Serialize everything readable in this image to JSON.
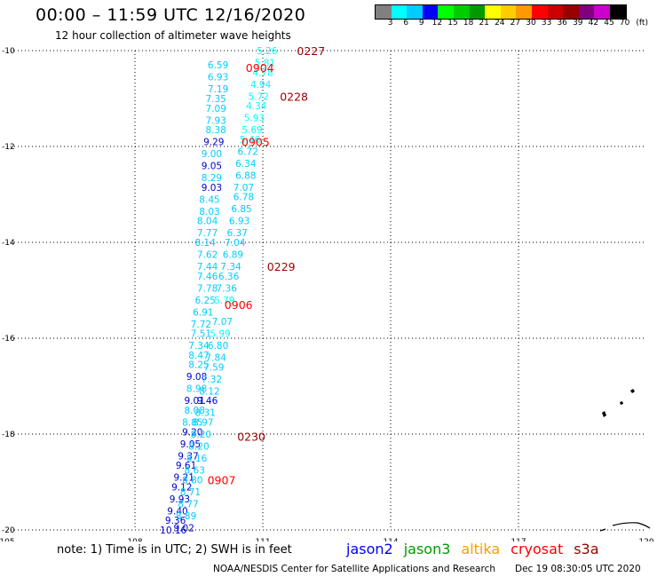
{
  "title": "00:00 – 11:59 UTC 12/16/2020",
  "subtitle": "12 hour collection of altimeter wave heights",
  "colorbar": {
    "colors": [
      "#808080",
      "#00ffff",
      "#00ccff",
      "#0000ff",
      "#00ff00",
      "#00cc00",
      "#009900",
      "#ffff00",
      "#ffcc00",
      "#ff9900",
      "#ff0000",
      "#cc0000",
      "#990000",
      "#800080",
      "#cc00cc",
      "#000000"
    ],
    "labels": [
      "3",
      "6",
      "9",
      "12",
      "15",
      "18",
      "21",
      "24",
      "27",
      "30",
      "33",
      "36",
      "39",
      "42",
      "45",
      "70",
      "(ft)"
    ]
  },
  "map": {
    "lon_ticks": [
      "105",
      "108",
      "111",
      "114",
      "117",
      "120"
    ],
    "lat_ticks": [
      "-10",
      "-12",
      "-14",
      "-16",
      "-18",
      "-20"
    ],
    "time_labels": [
      {
        "text": "0227",
        "lon": 111.8,
        "lat": -10.0,
        "color": "#990000"
      },
      {
        "text": "0904",
        "lon": 110.6,
        "lat": -10.35,
        "color": "#ff0000"
      },
      {
        "text": "0228",
        "lon": 111.4,
        "lat": -10.95,
        "color": "#990000"
      },
      {
        "text": "0905",
        "lon": 110.5,
        "lat": -11.9,
        "color": "#ff0000"
      },
      {
        "text": "0229",
        "lon": 111.1,
        "lat": -14.5,
        "color": "#990000"
      },
      {
        "text": "0906",
        "lon": 110.1,
        "lat": -15.3,
        "color": "#ff0000"
      },
      {
        "text": "0230",
        "lon": 110.4,
        "lat": -18.05,
        "color": "#990000"
      },
      {
        "text": "0907",
        "lon": 109.7,
        "lat": -18.95,
        "color": "#ff0000"
      }
    ],
    "wave_points": [
      {
        "v": "6.59",
        "lon": 109.95,
        "lat": -10.3,
        "color": "#00ccff"
      },
      {
        "v": "6.93",
        "lon": 109.95,
        "lat": -10.55,
        "color": "#00ccff"
      },
      {
        "v": "7.19",
        "lon": 109.95,
        "lat": -10.8,
        "color": "#00ccff"
      },
      {
        "v": "7.35",
        "lon": 109.9,
        "lat": -11.0,
        "color": "#00ccff"
      },
      {
        "v": "7.09",
        "lon": 109.9,
        "lat": -11.2,
        "color": "#00ccff"
      },
      {
        "v": "7.93",
        "lon": 109.9,
        "lat": -11.45,
        "color": "#00ccff"
      },
      {
        "v": "8.38",
        "lon": 109.9,
        "lat": -11.65,
        "color": "#00ccff"
      },
      {
        "v": "9.29",
        "lon": 109.85,
        "lat": -11.9,
        "color": "#0000cc"
      },
      {
        "v": "9.00",
        "lon": 109.8,
        "lat": -12.15,
        "color": "#00ccff"
      },
      {
        "v": "9.05",
        "lon": 109.8,
        "lat": -12.4,
        "color": "#0000cc"
      },
      {
        "v": "8.29",
        "lon": 109.8,
        "lat": -12.65,
        "color": "#00ccff"
      },
      {
        "v": "9.03",
        "lon": 109.8,
        "lat": -12.85,
        "color": "#0000cc"
      },
      {
        "v": "8.45",
        "lon": 109.75,
        "lat": -13.1,
        "color": "#00ccff"
      },
      {
        "v": "8.03",
        "lon": 109.75,
        "lat": -13.35,
        "color": "#00ccff"
      },
      {
        "v": "8.04",
        "lon": 109.7,
        "lat": -13.55,
        "color": "#00ccff"
      },
      {
        "v": "7.77",
        "lon": 109.7,
        "lat": -13.8,
        "color": "#00ccff"
      },
      {
        "v": "8.14",
        "lon": 109.65,
        "lat": -14.0,
        "color": "#00ccff"
      },
      {
        "v": "7.62",
        "lon": 109.7,
        "lat": -14.25,
        "color": "#00ccff"
      },
      {
        "v": "7.44",
        "lon": 109.7,
        "lat": -14.5,
        "color": "#00ccff"
      },
      {
        "v": "7.46",
        "lon": 109.7,
        "lat": -14.7,
        "color": "#00ccff"
      },
      {
        "v": "7.78",
        "lon": 109.7,
        "lat": -14.95,
        "color": "#00ccff"
      },
      {
        "v": "6.25",
        "lon": 109.65,
        "lat": -15.2,
        "color": "#00ccff"
      },
      {
        "v": "6.91",
        "lon": 109.6,
        "lat": -15.45,
        "color": "#00ccff"
      },
      {
        "v": "7.72",
        "lon": 109.55,
        "lat": -15.7,
        "color": "#00ccff"
      },
      {
        "v": "7.51",
        "lon": 109.55,
        "lat": -15.9,
        "color": "#00ccff"
      },
      {
        "v": "7.34",
        "lon": 109.5,
        "lat": -16.15,
        "color": "#00ccff"
      },
      {
        "v": "8.47",
        "lon": 109.5,
        "lat": -16.35,
        "color": "#00ccff"
      },
      {
        "v": "8.25",
        "lon": 109.5,
        "lat": -16.55,
        "color": "#00ccff"
      },
      {
        "v": "9.08",
        "lon": 109.45,
        "lat": -16.8,
        "color": "#0000cc"
      },
      {
        "v": "8.98",
        "lon": 109.45,
        "lat": -17.05,
        "color": "#00ccff"
      },
      {
        "v": "9.01",
        "lon": 109.4,
        "lat": -17.3,
        "color": "#0000cc"
      },
      {
        "v": "8.08",
        "lon": 109.4,
        "lat": -17.5,
        "color": "#00ccff"
      },
      {
        "v": "8.85",
        "lon": 109.35,
        "lat": -17.75,
        "color": "#00ccff"
      },
      {
        "v": "9.20",
        "lon": 109.35,
        "lat": -17.95,
        "color": "#0000cc"
      },
      {
        "v": "9.05",
        "lon": 109.3,
        "lat": -18.2,
        "color": "#0000cc"
      },
      {
        "v": "9.37",
        "lon": 109.25,
        "lat": -18.45,
        "color": "#0000cc"
      },
      {
        "v": "9.61",
        "lon": 109.2,
        "lat": -18.65,
        "color": "#0000cc"
      },
      {
        "v": "9.21",
        "lon": 109.15,
        "lat": -18.9,
        "color": "#0000cc"
      },
      {
        "v": "9.12",
        "lon": 109.1,
        "lat": -19.1,
        "color": "#0000cc"
      },
      {
        "v": "9.93",
        "lon": 109.05,
        "lat": -19.35,
        "color": "#0000cc"
      },
      {
        "v": "9.40",
        "lon": 109.0,
        "lat": -19.6,
        "color": "#0000cc"
      },
      {
        "v": "9.36",
        "lon": 108.95,
        "lat": -19.8,
        "color": "#0000cc"
      },
      {
        "v": "10.16",
        "lon": 108.9,
        "lat": -20.0,
        "color": "#0000cc"
      },
      {
        "v": "5.26",
        "lon": 111.1,
        "lat": -10.0,
        "color": "#00ffff"
      },
      {
        "v": "5.81",
        "lon": 111.05,
        "lat": -10.25,
        "color": "#00ffff"
      },
      {
        "v": "4.78",
        "lon": 111.0,
        "lat": -10.45,
        "color": "#00ffff"
      },
      {
        "v": "4.94",
        "lon": 110.95,
        "lat": -10.7,
        "color": "#00ffff"
      },
      {
        "v": "5.72",
        "lon": 110.9,
        "lat": -10.95,
        "color": "#00ffff"
      },
      {
        "v": "4.34",
        "lon": 110.85,
        "lat": -11.15,
        "color": "#00ffff"
      },
      {
        "v": "5.93",
        "lon": 110.8,
        "lat": -11.4,
        "color": "#00ffff"
      },
      {
        "v": "5.69",
        "lon": 110.75,
        "lat": -11.65,
        "color": "#00ffff"
      },
      {
        "v": "5.46",
        "lon": 110.7,
        "lat": -11.85,
        "color": "#00ffff"
      },
      {
        "v": "6.72",
        "lon": 110.65,
        "lat": -12.1,
        "color": "#00ccff"
      },
      {
        "v": "6.34",
        "lon": 110.6,
        "lat": -12.35,
        "color": "#00ccff"
      },
      {
        "v": "6.88",
        "lon": 110.6,
        "lat": -12.6,
        "color": "#00ccff"
      },
      {
        "v": "7.07",
        "lon": 110.55,
        "lat": -12.85,
        "color": "#00ccff"
      },
      {
        "v": "6.78",
        "lon": 110.55,
        "lat": -13.05,
        "color": "#00ccff"
      },
      {
        "v": "6.85",
        "lon": 110.5,
        "lat": -13.3,
        "color": "#00ccff"
      },
      {
        "v": "6.93",
        "lon": 110.45,
        "lat": -13.55,
        "color": "#00ccff"
      },
      {
        "v": "6.37",
        "lon": 110.4,
        "lat": -13.8,
        "color": "#00ccff"
      },
      {
        "v": "7.04",
        "lon": 110.35,
        "lat": -14.0,
        "color": "#00ccff"
      },
      {
        "v": "6.89",
        "lon": 110.3,
        "lat": -14.25,
        "color": "#00ccff"
      },
      {
        "v": "7.34",
        "lon": 110.25,
        "lat": -14.5,
        "color": "#00ccff"
      },
      {
        "v": "6.36",
        "lon": 110.2,
        "lat": -14.7,
        "color": "#00ccff"
      },
      {
        "v": "7.36",
        "lon": 110.15,
        "lat": -14.95,
        "color": "#00ccff"
      },
      {
        "v": "5.79",
        "lon": 110.1,
        "lat": -15.2,
        "color": "#00ffff"
      },
      {
        "v": "7.07",
        "lon": 110.05,
        "lat": -15.65,
        "color": "#00ccff"
      },
      {
        "v": "5.99",
        "lon": 110.0,
        "lat": -15.9,
        "color": "#00ffff"
      },
      {
        "v": "6.80",
        "lon": 109.95,
        "lat": -16.15,
        "color": "#00ccff"
      },
      {
        "v": "7.84",
        "lon": 109.9,
        "lat": -16.4,
        "color": "#00ccff"
      },
      {
        "v": "7.59",
        "lon": 109.85,
        "lat": -16.6,
        "color": "#00ccff"
      },
      {
        "v": "7.32",
        "lon": 109.8,
        "lat": -16.85,
        "color": "#00ccff"
      },
      {
        "v": "8.12",
        "lon": 109.75,
        "lat": -17.1,
        "color": "#00ccff"
      },
      {
        "v": "9.46",
        "lon": 109.7,
        "lat": -17.3,
        "color": "#0000cc"
      },
      {
        "v": "8.31",
        "lon": 109.65,
        "lat": -17.55,
        "color": "#00ccff"
      },
      {
        "v": "8.97",
        "lon": 109.6,
        "lat": -17.75,
        "color": "#00ccff"
      },
      {
        "v": "8.20",
        "lon": 109.55,
        "lat": -18.0,
        "color": "#00ccff"
      },
      {
        "v": "8.20",
        "lon": 109.5,
        "lat": -18.25,
        "color": "#00ccff"
      },
      {
        "v": "8.16",
        "lon": 109.45,
        "lat": -18.5,
        "color": "#00ccff"
      },
      {
        "v": "8.63",
        "lon": 109.4,
        "lat": -18.75,
        "color": "#00ccff"
      },
      {
        "v": "8.80",
        "lon": 109.35,
        "lat": -18.95,
        "color": "#00ccff"
      },
      {
        "v": "8.71",
        "lon": 109.3,
        "lat": -19.2,
        "color": "#00ccff"
      },
      {
        "v": "8.77",
        "lon": 109.25,
        "lat": -19.45,
        "color": "#00ccff"
      },
      {
        "v": "8.89",
        "lon": 109.2,
        "lat": -19.7,
        "color": "#00ccff"
      },
      {
        "v": "9.02",
        "lon": 109.15,
        "lat": -19.95,
        "color": "#0000cc"
      }
    ]
  },
  "note": "note: 1) Time is in UTC; 2) SWH is in feet",
  "missions": [
    {
      "name": "jason2",
      "color": "#0000ff"
    },
    {
      "name": "jason3",
      "color": "#009900"
    },
    {
      "name": "altika",
      "color": "#ff9900"
    },
    {
      "name": "cryosat",
      "color": "#ff0000"
    },
    {
      "name": "s3a",
      "color": "#990000"
    }
  ],
  "credit": "NOAA/NESDIS Center for Satellite Applications and Research",
  "timestamp": "Dec 19 08:30:05 UTC 2020"
}
